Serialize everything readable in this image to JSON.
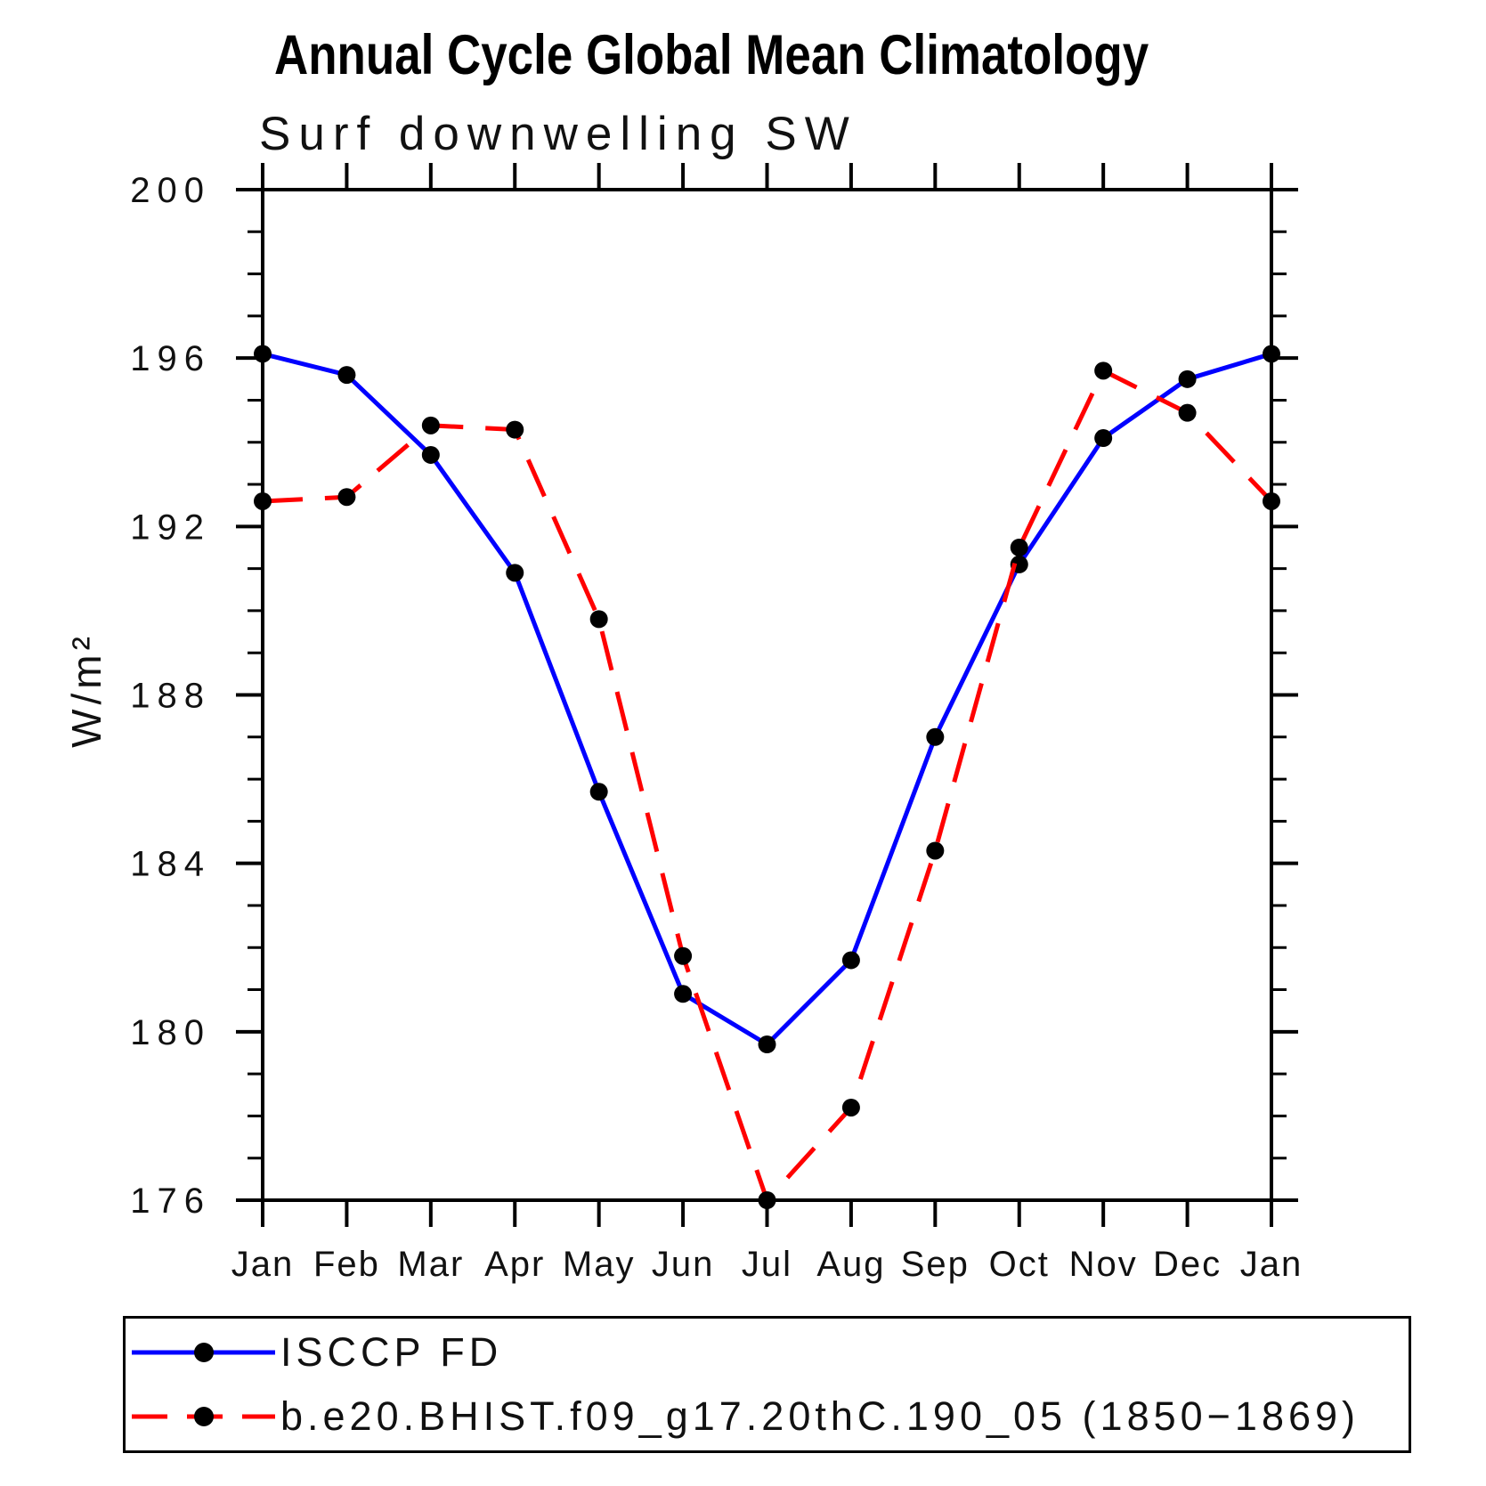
{
  "chart_data": {
    "type": "line",
    "title": "Annual Cycle Global Mean Climatology",
    "subtitle": "Surf downwelling SW",
    "ylabel": "W/m²",
    "categories": [
      "Jan",
      "Feb",
      "Mar",
      "Apr",
      "May",
      "Jun",
      "Jul",
      "Aug",
      "Sep",
      "Oct",
      "Nov",
      "Dec",
      "Jan"
    ],
    "ylim": [
      176,
      200
    ],
    "yticks": [
      176,
      180,
      184,
      188,
      192,
      196,
      200
    ],
    "ytick_step": 4,
    "yminor_step": 1,
    "grid": false,
    "legend_position": "bottom",
    "axis_color": "#000000",
    "marker_color": "#000000",
    "series": [
      {
        "name": "ISCCP FD",
        "color": "#0000ff",
        "style": "solid",
        "marker": "circle",
        "values": [
          196.1,
          195.6,
          193.7,
          190.9,
          185.7,
          180.9,
          179.7,
          181.7,
          187.0,
          191.1,
          194.1,
          195.5,
          196.1
        ]
      },
      {
        "name": "b.e20.BHIST.f09_g17.20thC.190_05 (1850−1869)",
        "color": "#ff0000",
        "style": "dashed",
        "marker": "circle",
        "values": [
          192.6,
          192.7,
          194.4,
          194.3,
          189.8,
          181.8,
          176.0,
          178.2,
          184.3,
          191.5,
          195.7,
          194.7,
          192.6
        ]
      }
    ]
  }
}
